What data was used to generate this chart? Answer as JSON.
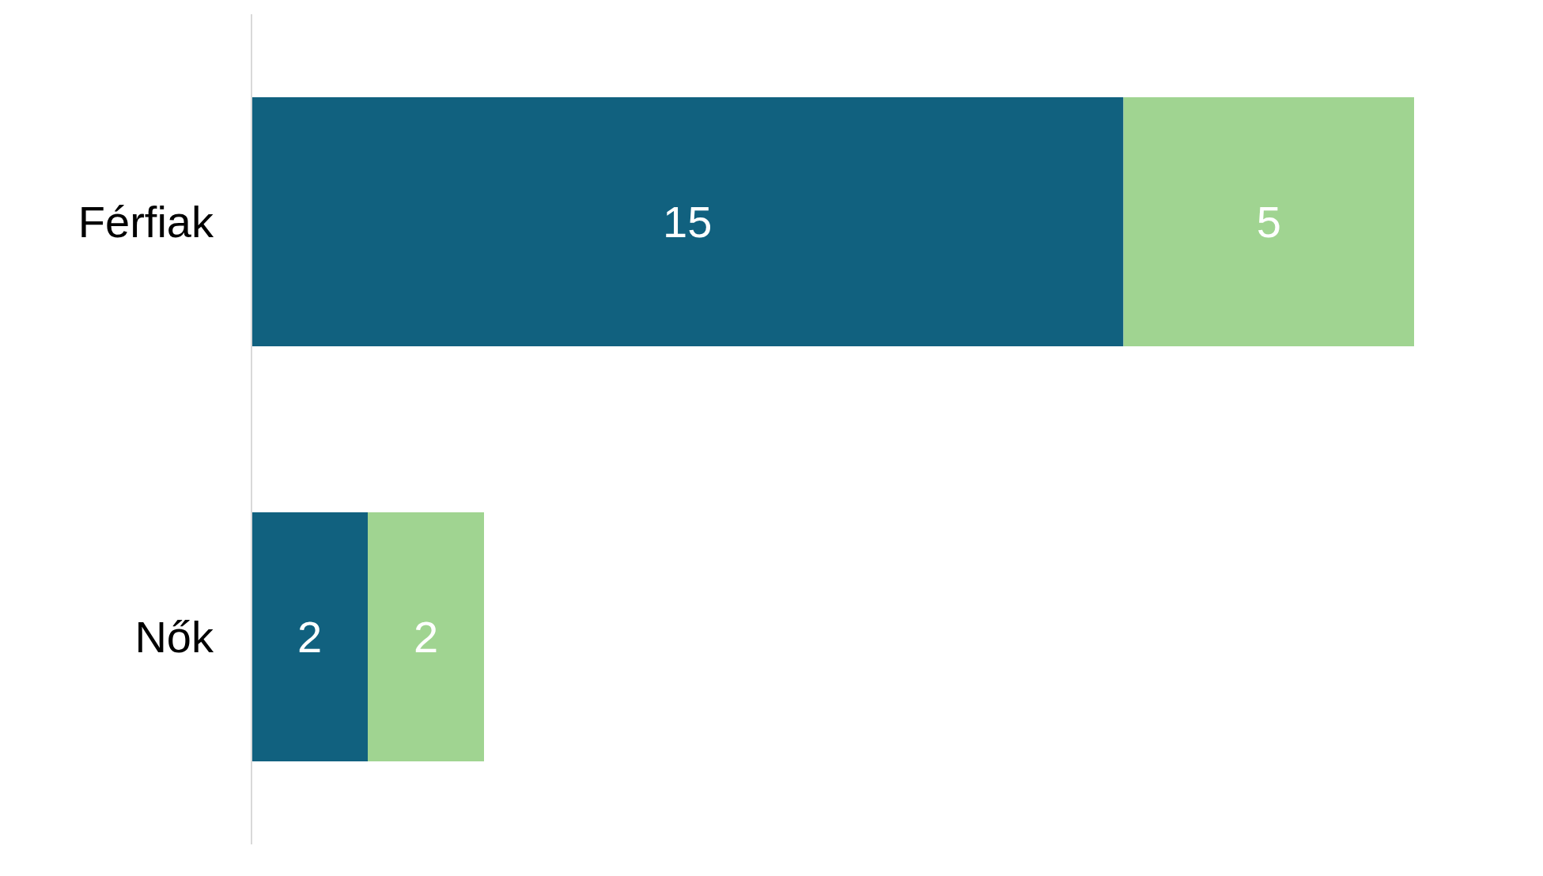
{
  "chart_data": {
    "type": "bar",
    "orientation": "horizontal",
    "stacked": true,
    "data_labels": true,
    "categories": [
      "Férfiak",
      "Nők"
    ],
    "series": [
      {
        "color": "#11617f",
        "values": [
          15,
          2
        ]
      },
      {
        "color": "#a0d491",
        "values": [
          5,
          2
        ]
      }
    ]
  }
}
